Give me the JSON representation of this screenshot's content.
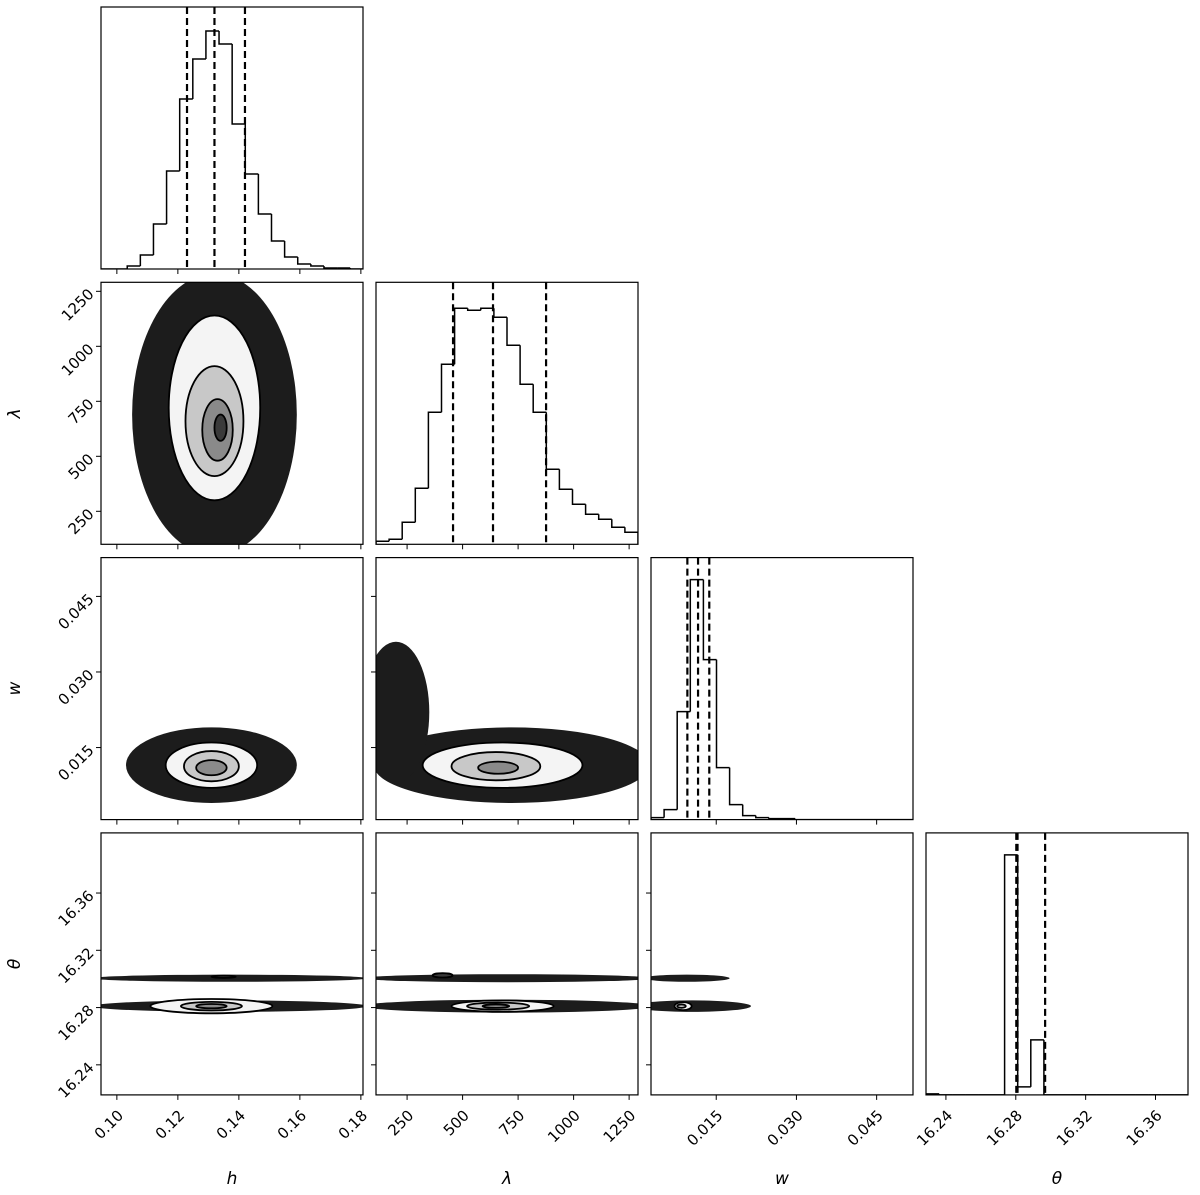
{
  "chart_data": {
    "type": "corner",
    "hist_ylim": [
      0,
      262
    ],
    "params": [
      {
        "label": "h",
        "xlim": [
          0.0948,
          0.1807
        ],
        "xticks": [
          {
            "value": 0.1,
            "label": "0.10"
          },
          0.12,
          0.14,
          0.16,
          0.18
        ],
        "bins": [
          0.0948,
          0.0991,
          0.1034,
          0.1077,
          0.112,
          0.1163,
          0.1206,
          0.1249,
          0.1292,
          0.1335,
          0.1378,
          0.1421,
          0.1464,
          0.1507,
          0.155,
          0.1593,
          0.1636,
          0.1679,
          0.1722,
          0.1765,
          0.1808
        ],
        "counts": [
          0,
          0,
          3,
          14,
          45,
          98,
          170,
          210,
          238,
          225,
          145,
          95,
          55,
          28,
          12,
          5,
          3,
          1,
          1,
          0
        ],
        "quantiles": [
          0.123,
          0.132,
          0.142
        ]
      },
      {
        "label": "λ",
        "xlim": [
          110,
          1290
        ],
        "ylim": [
          100,
          1291
        ],
        "xticks": [
          250,
          500,
          750,
          1000,
          1250
        ],
        "yticks": [
          250,
          500,
          750,
          1000,
          1250
        ],
        "bins": [
          110,
          169,
          228,
          287,
          346,
          405,
          464,
          523,
          582,
          641,
          700,
          759,
          818,
          877,
          936,
          995,
          1054,
          1113,
          1172,
          1231,
          1290
        ],
        "counts": [
          3,
          5,
          22,
          56,
          132,
          180,
          236,
          234,
          236,
          227,
          199,
          160,
          132,
          75,
          55,
          40,
          30,
          25,
          17,
          12
        ],
        "quantiles": [
          457,
          637,
          876
        ]
      },
      {
        "label": "w",
        "xlim": [
          0.0028,
          0.0518
        ],
        "ylim": [
          0.0007,
          0.0527
        ],
        "xticks": [
          0.015,
          {
            "value": 0.03,
            "label": "0.030"
          },
          0.045
        ],
        "yticks": [
          0.015,
          {
            "value": 0.03,
            "label": "0.030"
          },
          0.045
        ],
        "bins": [
          0.0028,
          0.00525,
          0.0077,
          0.01015,
          0.0126,
          0.01505,
          0.0175,
          0.01995,
          0.0224,
          0.02485,
          0.0273,
          0.02975,
          0.0322,
          0.03465,
          0.0371,
          0.03955,
          0.042,
          0.04445,
          0.0469,
          0.04935,
          0.0518
        ],
        "counts": [
          2,
          10,
          108,
          240,
          160,
          52,
          15,
          4,
          2,
          1,
          1,
          0,
          0,
          0,
          0,
          0,
          0,
          0,
          0,
          0
        ],
        "quantiles": [
          0.0096,
          0.0116,
          0.0137
        ]
      },
      {
        "label": "θ",
        "xlim": [
          16.2286,
          16.3786
        ],
        "ylim": [
          16.219,
          16.402
        ],
        "xticks": [
          16.24,
          16.28,
          16.32,
          16.36
        ],
        "yticks": [
          16.24,
          16.28,
          16.32,
          16.36
        ],
        "bins": [
          16.2286,
          16.2361,
          16.2436,
          16.2511,
          16.2586,
          16.2661,
          16.2736,
          16.2811,
          16.2886,
          16.2961,
          16.3036,
          16.3111,
          16.3186,
          16.3261,
          16.3336,
          16.3411,
          16.3486,
          16.3561,
          16.3636,
          16.3711,
          16.3786
        ],
        "counts": [
          1,
          0,
          0,
          0,
          0,
          0,
          240,
          8,
          55,
          0,
          0,
          0,
          0,
          0,
          0,
          0,
          0,
          0,
          0,
          0
        ],
        "quantiles": [
          16.2803,
          16.281,
          16.2968
        ]
      }
    ],
    "panels": [
      {
        "clouds": [
          {
            "cx": 0.132,
            "cy": 690,
            "rx": 0.027,
            "ry": 640
          }
        ],
        "contours": [
          {
            "cx": 0.132,
            "cy": 720,
            "rx": 0.015,
            "ry": 420
          },
          {
            "cx": 0.132,
            "cy": 660,
            "rx": 0.0095,
            "ry": 250
          },
          {
            "cx": 0.133,
            "cy": 620,
            "rx": 0.005,
            "ry": 140
          },
          {
            "cx": 0.134,
            "cy": 630,
            "rx": 0.002,
            "ry": 60
          }
        ]
      },
      {
        "clouds": [
          {
            "cx": 0.131,
            "cy": 0.0115,
            "rx": 0.028,
            "ry": 0.0075
          }
        ],
        "contours": [
          {
            "cx": 0.131,
            "cy": 0.0115,
            "rx": 0.015,
            "ry": 0.0045
          },
          {
            "cx": 0.131,
            "cy": 0.0113,
            "rx": 0.009,
            "ry": 0.003
          },
          {
            "cx": 0.131,
            "cy": 0.011,
            "rx": 0.005,
            "ry": 0.0015
          }
        ]
      },
      {
        "clouds": [
          {
            "cx": 720,
            "cy": 0.0115,
            "rx": 620,
            "ry": 0.0075
          },
          {
            "cx": 200,
            "cy": 0.022,
            "rx": 150,
            "ry": 0.014
          }
        ],
        "contours": [
          {
            "cx": 680,
            "cy": 0.0115,
            "rx": 360,
            "ry": 0.0045
          },
          {
            "cx": 650,
            "cy": 0.0113,
            "rx": 200,
            "ry": 0.0028
          },
          {
            "cx": 660,
            "cy": 0.011,
            "rx": 90,
            "ry": 0.0012
          }
        ]
      },
      {
        "clouds": [
          {
            "cx": 0.137,
            "cy": 16.281,
            "rx": 0.045,
            "ry": 0.004
          },
          {
            "cx": 0.137,
            "cy": 16.3005,
            "rx": 0.045,
            "ry": 0.0025
          }
        ],
        "contours": [
          {
            "cx": 0.131,
            "cy": 16.281,
            "rx": 0.02,
            "ry": 0.005
          },
          {
            "cx": 0.131,
            "cy": 16.281,
            "rx": 0.01,
            "ry": 0.003
          },
          {
            "cx": 0.131,
            "cy": 16.281,
            "rx": 0.005,
            "ry": 0.0015
          },
          {
            "cx": 0.135,
            "cy": 16.3015,
            "rx": 0.004,
            "ry": 0.0008
          }
        ]
      },
      {
        "clouds": [
          {
            "cx": 700,
            "cy": 16.281,
            "rx": 650,
            "ry": 0.0045
          },
          {
            "cx": 700,
            "cy": 16.3005,
            "rx": 650,
            "ry": 0.0028
          }
        ],
        "contours": [
          {
            "cx": 680,
            "cy": 16.281,
            "rx": 230,
            "ry": 0.004
          },
          {
            "cx": 660,
            "cy": 16.281,
            "rx": 140,
            "ry": 0.0025
          },
          {
            "cx": 650,
            "cy": 16.281,
            "rx": 60,
            "ry": 0.0012
          },
          {
            "cx": 410,
            "cy": 16.3025,
            "rx": 45,
            "ry": 0.0015
          }
        ]
      },
      {
        "clouds": [
          {
            "cx": 0.0105,
            "cy": 16.281,
            "rx": 0.011,
            "ry": 0.004
          },
          {
            "cx": 0.0095,
            "cy": 16.3005,
            "rx": 0.008,
            "ry": 0.0025
          }
        ],
        "contours": [
          {
            "cx": 0.0088,
            "cy": 16.281,
            "rx": 0.0016,
            "ry": 0.0028
          },
          {
            "cx": 0.0085,
            "cy": 16.281,
            "rx": 0.0008,
            "ry": 0.0012
          }
        ]
      }
    ]
  }
}
